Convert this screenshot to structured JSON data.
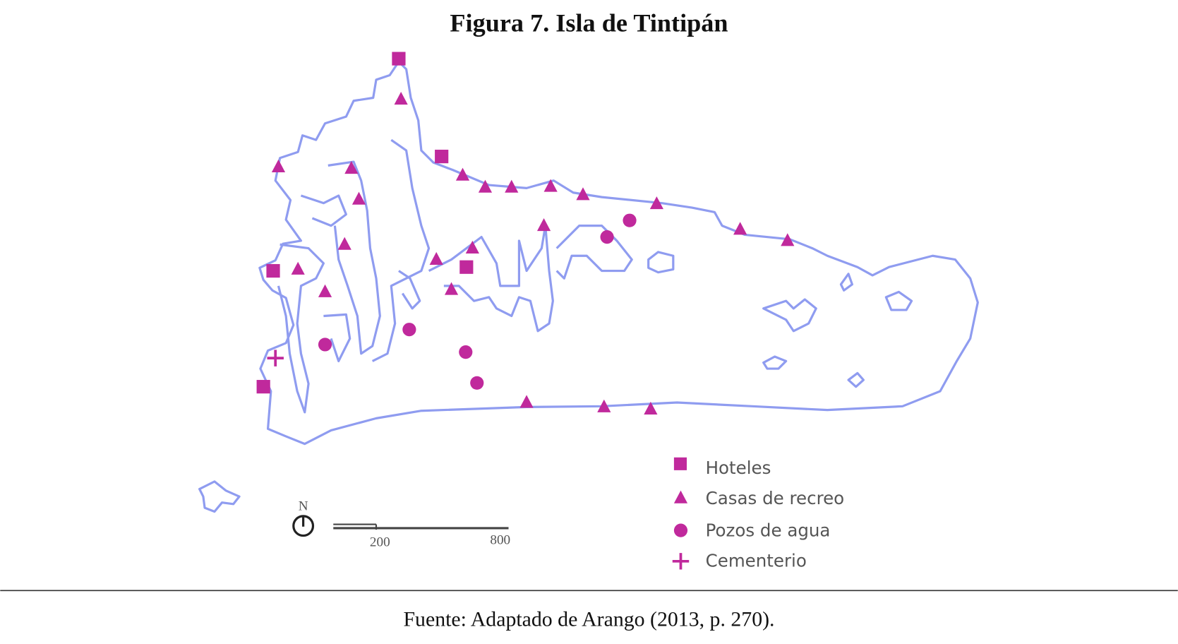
{
  "title": "Figura 7. Isla de Tintipán",
  "legend": [
    "Hoteles",
    "Casas de recreo",
    "Pozos de agua",
    "Cementerio"
  ],
  "scale": {
    "north": "N",
    "labels": [
      "200",
      "800"
    ]
  },
  "source": "Fuente: Adaptado de Arango (2013, p. 270)."
}
